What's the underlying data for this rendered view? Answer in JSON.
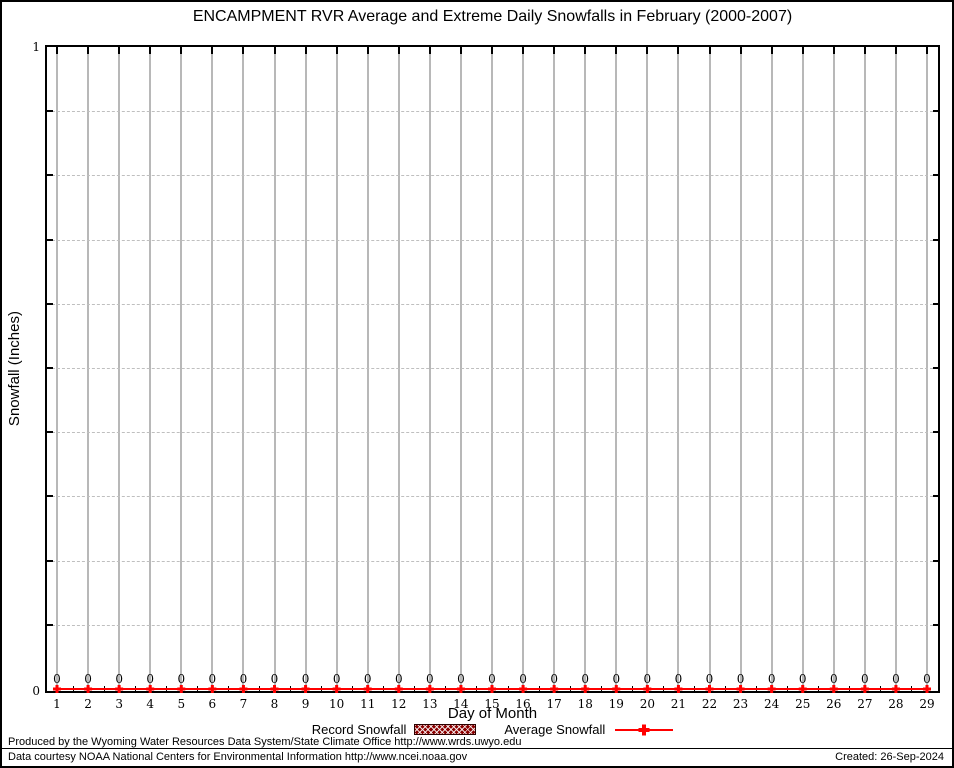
{
  "chart_data": {
    "type": "line",
    "title": "ENCAMPMENT RVR Average and Extreme Daily Snowfalls in February (2000-2007)",
    "xlabel": "Day of Month",
    "ylabel": "Snowfall (Inches)",
    "x": [
      1,
      2,
      3,
      4,
      5,
      6,
      7,
      8,
      9,
      10,
      11,
      12,
      13,
      14,
      15,
      16,
      17,
      18,
      19,
      20,
      21,
      22,
      23,
      24,
      25,
      26,
      27,
      28,
      29
    ],
    "series": [
      {
        "name": "Record Snowfall",
        "type": "bar",
        "color": "#8b0000",
        "values": [
          0,
          0,
          0,
          0,
          0,
          0,
          0,
          0,
          0,
          0,
          0,
          0,
          0,
          0,
          0,
          0,
          0,
          0,
          0,
          0,
          0,
          0,
          0,
          0,
          0,
          0,
          0,
          0,
          0
        ]
      },
      {
        "name": "Average Snowfall",
        "type": "line",
        "marker": "plus",
        "color": "#ff0000",
        "values": [
          0,
          0,
          0,
          0,
          0,
          0,
          0,
          0,
          0,
          0,
          0,
          0,
          0,
          0,
          0,
          0,
          0,
          0,
          0,
          0,
          0,
          0,
          0,
          0,
          0,
          0,
          0,
          0,
          0
        ]
      }
    ],
    "point_value_labels": [
      "0",
      "0",
      "0",
      "0",
      "0",
      "0",
      "0",
      "0",
      "0",
      "0",
      "0",
      "0",
      "0",
      "0",
      "0",
      "0",
      "0",
      "0",
      "0",
      "0",
      "0",
      "0",
      "0",
      "0",
      "0",
      "0",
      "0",
      "0",
      "0"
    ],
    "ylim": [
      0,
      1
    ],
    "ytick_top_label": "1",
    "ytick_bottom_label": "0",
    "y_gridline_values": [
      0.1,
      0.2,
      0.3,
      0.4,
      0.5,
      0.6,
      0.7,
      0.8,
      0.9
    ],
    "grid": true,
    "legend_position": "bottom"
  },
  "footer": {
    "produced_by": "Produced by the Wyoming Water Resources Data System/State Climate Office http://www.wrds.uwyo.edu",
    "data_courtesy": "Data courtesy NOAA National Centers for Environmental Information http://www.ncei.noaa.gov",
    "created": "Created: 26-Sep-2024"
  },
  "colors": {
    "average_line": "#ff0000",
    "record_fill": "#8b0000",
    "vertical_grid": "#b8b8b8",
    "horizontal_grid": "#bfbfbf",
    "axis": "#000000",
    "background": "#ffffff"
  }
}
